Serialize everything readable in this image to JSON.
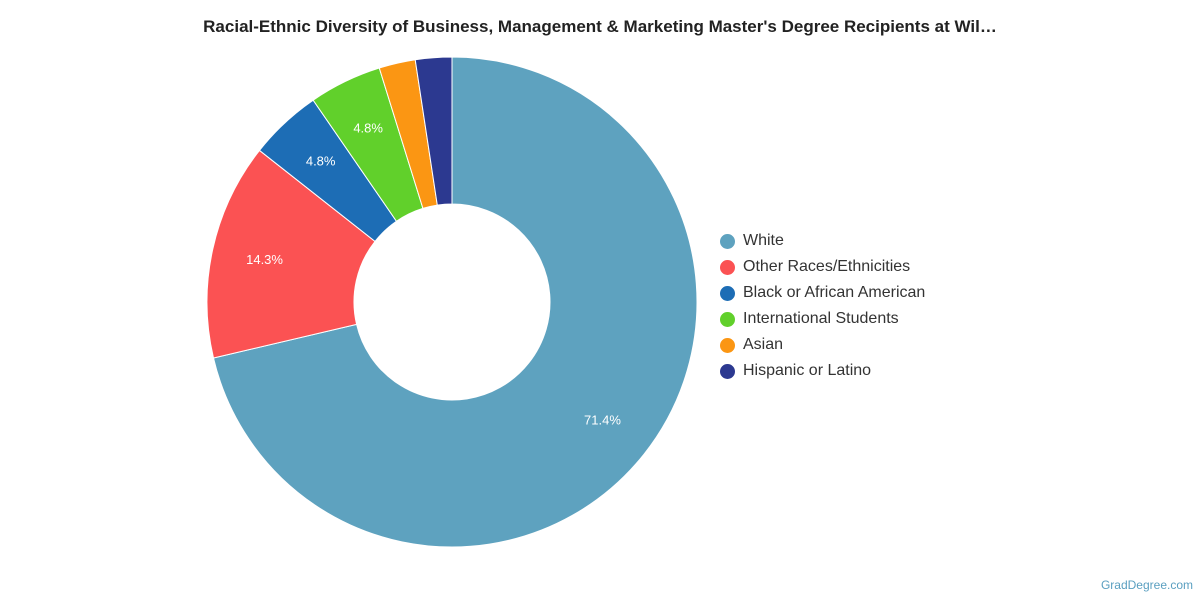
{
  "chart_data": {
    "type": "pie",
    "variant": "donut",
    "title": "Racial-Ethnic Diversity of Business, Management & Marketing Master's Degree Recipients at Wil…",
    "slices": [
      {
        "label": "White",
        "value": 71.4,
        "value_label": "71.4%",
        "color": "#5ea2bf"
      },
      {
        "label": "Other Races/Ethnicities",
        "value": 14.3,
        "value_label": "14.3%",
        "color": "#fb5253"
      },
      {
        "label": "Black or African American",
        "value": 4.8,
        "value_label": "4.8%",
        "color": "#1d6db5"
      },
      {
        "label": "International Students",
        "value": 4.8,
        "value_label": "4.8%",
        "color": "#61d02b"
      },
      {
        "label": "Asian",
        "value": 2.4,
        "value_label": "",
        "color": "#fb9613"
      },
      {
        "label": "Hispanic or Latino",
        "value": 2.4,
        "value_label": "",
        "color": "#2c3990"
      }
    ],
    "legend_position": "right"
  },
  "credit": "GradDegree.com"
}
